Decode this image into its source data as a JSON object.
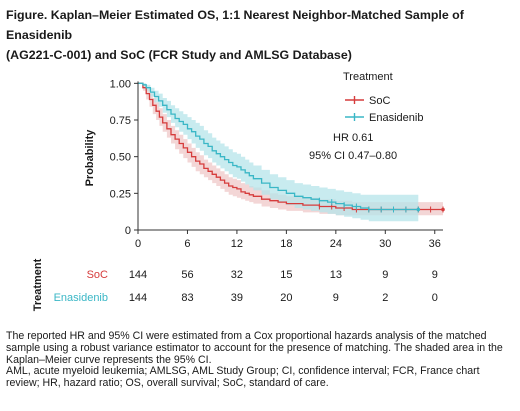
{
  "title_line1": "Figure. Kaplan–Meier Estimated OS, 1:1 Nearest Neighbor-Matched Sample of Enasidenib",
  "title_line2": "(AG221-C-001) and SoC (FCR Study and AMLSG Database)",
  "chart_data": {
    "type": "line",
    "subtype": "kaplan-meier",
    "ylabel": "Probability",
    "xlabel": "",
    "xlim": [
      0,
      37
    ],
    "ylim": [
      0,
      1.05
    ],
    "xticks": [
      0,
      6,
      12,
      18,
      24,
      30,
      36
    ],
    "yticks": [
      0,
      0.25,
      0.5,
      0.75,
      1.0
    ],
    "ytick_labels": [
      "0",
      "0.25",
      "0.50",
      "0.75",
      "1.00"
    ],
    "legend": {
      "title": "Treatment",
      "position": "top-right"
    },
    "annotations": [
      "HR 0.61",
      "95% CI 0.47–0.80"
    ],
    "grid": false,
    "series": [
      {
        "name": "SoC",
        "color": "#d63c3c",
        "band_color": "#f1cfcf",
        "x": [
          0,
          0.6,
          1,
          1.4,
          1.8,
          2.2,
          2.6,
          3,
          3.5,
          4,
          4.5,
          5,
          5.5,
          6,
          6.5,
          7,
          7.5,
          8,
          8.5,
          9,
          9.5,
          10,
          10.5,
          11,
          11.5,
          12,
          12.5,
          13,
          13.5,
          14,
          15,
          16,
          17,
          18,
          20,
          22,
          24,
          26,
          28,
          30,
          32,
          34,
          37
        ],
        "y": [
          1.0,
          0.97,
          0.93,
          0.89,
          0.85,
          0.81,
          0.77,
          0.73,
          0.69,
          0.65,
          0.62,
          0.59,
          0.56,
          0.53,
          0.5,
          0.47,
          0.45,
          0.42,
          0.4,
          0.38,
          0.36,
          0.34,
          0.32,
          0.3,
          0.29,
          0.28,
          0.26,
          0.25,
          0.24,
          0.23,
          0.21,
          0.2,
          0.19,
          0.18,
          0.17,
          0.16,
          0.15,
          0.14,
          0.14,
          0.14,
          0.14,
          0.14,
          0.14
        ],
        "lower": [
          1.0,
          0.95,
          0.89,
          0.84,
          0.79,
          0.75,
          0.71,
          0.67,
          0.63,
          0.59,
          0.55,
          0.52,
          0.49,
          0.46,
          0.43,
          0.4,
          0.38,
          0.36,
          0.34,
          0.32,
          0.3,
          0.28,
          0.26,
          0.24,
          0.23,
          0.22,
          0.21,
          0.2,
          0.19,
          0.18,
          0.16,
          0.15,
          0.14,
          0.13,
          0.12,
          0.11,
          0.1,
          0.1,
          0.1,
          0.1,
          0.1,
          0.1,
          0.1
        ],
        "upper": [
          1.0,
          0.99,
          0.96,
          0.93,
          0.9,
          0.87,
          0.83,
          0.79,
          0.75,
          0.71,
          0.68,
          0.65,
          0.62,
          0.59,
          0.56,
          0.53,
          0.51,
          0.48,
          0.46,
          0.44,
          0.42,
          0.4,
          0.38,
          0.36,
          0.35,
          0.34,
          0.32,
          0.31,
          0.3,
          0.29,
          0.27,
          0.25,
          0.24,
          0.23,
          0.22,
          0.21,
          0.2,
          0.19,
          0.19,
          0.19,
          0.19,
          0.19,
          0.19
        ],
        "at_risk": [
          144,
          56,
          32,
          15,
          13,
          9,
          9
        ]
      },
      {
        "name": "Enasidenib",
        "color": "#3ab7c6",
        "band_color": "#b5e4ea",
        "x": [
          0,
          0.6,
          1,
          1.5,
          2,
          2.5,
          3,
          3.5,
          4,
          4.5,
          5,
          5.5,
          6,
          6.5,
          7,
          7.5,
          8,
          8.5,
          9,
          9.5,
          10,
          10.5,
          11,
          11.5,
          12,
          12.5,
          13,
          13.5,
          14,
          15,
          16,
          17,
          18,
          19,
          20,
          21,
          22,
          23,
          24,
          25,
          26,
          27,
          28,
          30,
          32,
          34
        ],
        "y": [
          1.0,
          0.99,
          0.97,
          0.94,
          0.91,
          0.88,
          0.85,
          0.82,
          0.79,
          0.76,
          0.74,
          0.72,
          0.69,
          0.67,
          0.64,
          0.62,
          0.59,
          0.57,
          0.54,
          0.52,
          0.5,
          0.48,
          0.46,
          0.44,
          0.43,
          0.41,
          0.39,
          0.37,
          0.35,
          0.32,
          0.29,
          0.27,
          0.25,
          0.23,
          0.22,
          0.21,
          0.2,
          0.19,
          0.18,
          0.17,
          0.16,
          0.15,
          0.14,
          0.14,
          0.14,
          0.14
        ],
        "lower": [
          1.0,
          0.98,
          0.95,
          0.91,
          0.87,
          0.84,
          0.8,
          0.77,
          0.73,
          0.7,
          0.67,
          0.65,
          0.62,
          0.59,
          0.56,
          0.54,
          0.51,
          0.49,
          0.46,
          0.44,
          0.42,
          0.4,
          0.38,
          0.36,
          0.35,
          0.33,
          0.31,
          0.29,
          0.27,
          0.24,
          0.21,
          0.19,
          0.17,
          0.15,
          0.14,
          0.13,
          0.12,
          0.11,
          0.1,
          0.09,
          0.08,
          0.07,
          0.06,
          0.06,
          0.06,
          0.06
        ],
        "upper": [
          1.0,
          1.0,
          0.99,
          0.97,
          0.95,
          0.93,
          0.9,
          0.88,
          0.85,
          0.83,
          0.81,
          0.79,
          0.77,
          0.75,
          0.73,
          0.71,
          0.68,
          0.66,
          0.63,
          0.61,
          0.59,
          0.57,
          0.55,
          0.53,
          0.52,
          0.5,
          0.48,
          0.46,
          0.44,
          0.41,
          0.38,
          0.36,
          0.34,
          0.32,
          0.31,
          0.3,
          0.29,
          0.28,
          0.27,
          0.26,
          0.25,
          0.24,
          0.24,
          0.24,
          0.24,
          0.24
        ],
        "at_risk": [
          144,
          83,
          39,
          20,
          9,
          2,
          0
        ]
      }
    ],
    "risk_table": {
      "title": "Treatment",
      "times": [
        0,
        6,
        12,
        18,
        24,
        30,
        36
      ]
    }
  },
  "footnote_1": "The reported HR and 95% CI were estimated from a Cox proportional hazards analysis of the matched sample using a robust variance estimator to account for the presence of matching. The shaded area in the Kaplan–Meier curve represents the 95% CI.",
  "footnote_2": "AML, acute myeloid leukemia; AMLSG, AML Study Group; CI, confidence interval; FCR, France chart review; HR, hazard ratio; OS, overall survival; SoC, standard of care."
}
